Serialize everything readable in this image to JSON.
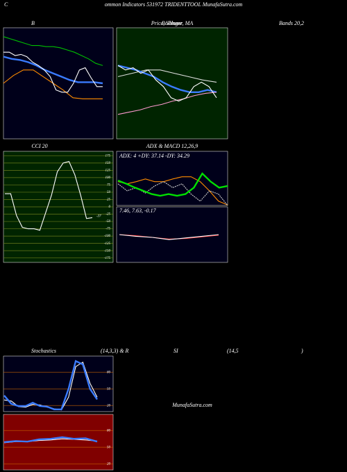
{
  "header": {
    "c": "C",
    "title": "ommon Indicators 531972 TRIDENTTOOL MunafaSutra.com"
  },
  "labels": {
    "b": "B",
    "price": "Price, Volume, MA",
    "bollinger": "Bollinger",
    "bands": "Bands 20,2",
    "cci": "CCI 20",
    "adx": "ADX  & MACD 12,26,9",
    "adx_values": "ADX: 4  +DY: 37.14  -DY: 34.29",
    "macd_values": "7.46,  7.63,  -0.17",
    "stoch": "Stochastics",
    "stoch_params": "(14,3,3) & R",
    "si": "SI",
    "rsi_params": "(14,5",
    "close": ")",
    "watermark": "MunafaSutra.com"
  },
  "chart_data": [
    {
      "type": "line",
      "name": "bollinger",
      "ylim": [
        0,
        100
      ],
      "series": [
        {
          "color": "#00c000",
          "values": [
            92,
            90,
            88,
            86,
            84,
            84,
            83,
            83,
            82,
            80,
            78,
            75,
            72,
            68,
            66
          ]
        },
        {
          "color": "#3a7bff",
          "values": [
            74,
            72,
            71,
            69,
            66,
            62,
            59,
            56,
            53,
            51,
            51,
            51,
            50
          ]
        },
        {
          "color": "#ff8c00",
          "values": [
            50,
            57,
            62,
            62,
            56,
            50,
            44,
            37,
            36,
            36,
            36
          ]
        },
        {
          "color": "#ffffff",
          "values": [
            78,
            78,
            75,
            76,
            74,
            69,
            66,
            62,
            56,
            44,
            42,
            42,
            50,
            62,
            64,
            55,
            47,
            47
          ]
        }
      ]
    },
    {
      "type": "line",
      "name": "price-ma",
      "ylim": [
        0,
        100
      ],
      "series": [
        {
          "color": "#dddddd",
          "values": [
            56,
            59,
            62,
            62,
            59,
            56,
            53,
            51
          ]
        },
        {
          "color": "#3a7bff",
          "values": [
            66,
            64,
            62,
            59,
            56,
            51,
            47,
            44,
            42,
            42,
            44,
            42
          ]
        },
        {
          "color": "#ff9ad0",
          "values": [
            22,
            24,
            26,
            29,
            31,
            34,
            36,
            39,
            41,
            42
          ]
        },
        {
          "color": "#ffffff",
          "values": [
            66,
            62,
            64,
            59,
            62,
            53,
            47,
            37,
            34,
            37,
            47,
            51,
            47,
            37
          ]
        }
      ]
    },
    {
      "type": "line",
      "name": "cci",
      "ylim": [
        -190,
        190
      ],
      "yticks": [
        175,
        150,
        125,
        100,
        75,
        50,
        25,
        0,
        -25,
        -50,
        -75,
        -100,
        -125,
        -150,
        -175
      ],
      "value_label": "-37",
      "series": [
        {
          "color": "#ffffff",
          "values": [
            45,
            45,
            -30,
            -70,
            -75,
            -75,
            -80,
            -20,
            40,
            120,
            150,
            155,
            110,
            40,
            -40,
            -37
          ]
        }
      ]
    },
    {
      "type": "line",
      "name": "adx",
      "ylim": [
        0,
        100
      ],
      "series": [
        {
          "color": "#ff8c00",
          "values": [
            44,
            40,
            44,
            49,
            44,
            44,
            49,
            53,
            53,
            44,
            27,
            8,
            1
          ]
        },
        {
          "color": "#cccccc",
          "values": [
            40,
            27,
            33,
            23,
            36,
            44,
            33,
            40,
            21,
            8,
            27,
            21,
            0
          ]
        },
        {
          "color": "#00e000",
          "values": [
            46,
            40,
            33,
            27,
            21,
            18,
            21,
            18,
            21,
            33,
            59,
            44,
            33,
            36
          ]
        }
      ]
    },
    {
      "type": "line",
      "name": "macd",
      "ylim": [
        0,
        100
      ],
      "series": [
        {
          "color": "#ff3030",
          "values": [
            50,
            48,
            45,
            42,
            43,
            46,
            49
          ]
        },
        {
          "color": "#ffffff",
          "values": [
            50,
            47,
            45,
            41,
            44,
            47,
            50
          ]
        }
      ]
    },
    {
      "type": "line",
      "name": "stochastics",
      "ylim": [
        9,
        109
      ],
      "yticks": [
        80,
        50,
        20
      ],
      "series": [
        {
          "color": "#ffffff",
          "values": [
            30,
            28,
            18,
            17,
            22,
            21,
            17,
            14,
            12,
            35,
            90,
            98,
            60,
            35
          ]
        },
        {
          "color": "#3a7bff",
          "values": [
            38,
            23,
            19,
            19,
            25,
            19,
            18,
            13,
            13,
            50,
            100,
            94,
            50,
            31
          ]
        }
      ]
    },
    {
      "type": "line",
      "name": "rsi",
      "ylim": [
        9,
        109
      ],
      "yticks": [
        80,
        50,
        20
      ],
      "series": [
        {
          "color": "#ffffff",
          "values": [
            58,
            60,
            60,
            62,
            63,
            65,
            64,
            63,
            61
          ]
        },
        {
          "color": "#3a7bff",
          "values": [
            59,
            61,
            60,
            64,
            65,
            68,
            65,
            66,
            60
          ]
        }
      ]
    }
  ]
}
